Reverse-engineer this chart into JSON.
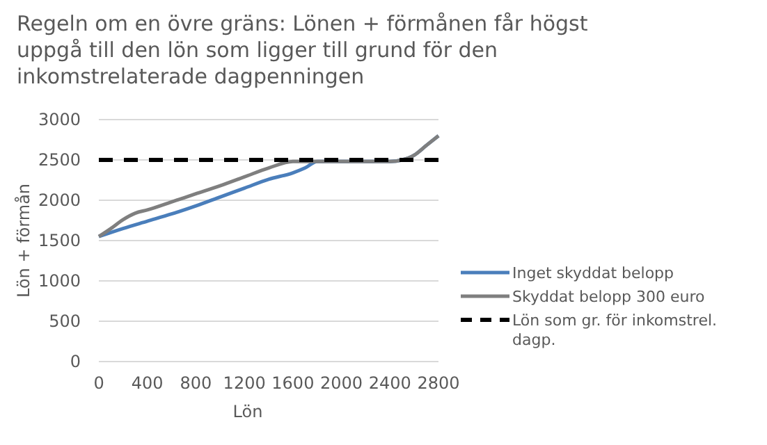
{
  "chart_data": {
    "type": "line",
    "title": "Regeln om en övre gräns: Lönen + förmånen får högst uppgå till den lön som ligger till grund för den inkomstrelaterade dagpenningen",
    "xlabel": "Lön",
    "ylabel": "Lön + förmån",
    "xlim": [
      0,
      2800
    ],
    "xticks": [
      0,
      400,
      800,
      1200,
      1600,
      2000,
      2400,
      2800
    ],
    "ylim": [
      0,
      3000
    ],
    "yticks": [
      0,
      500,
      1000,
      1500,
      2000,
      2500,
      3000
    ],
    "grid": "y",
    "legend": "right",
    "series": [
      {
        "name": "Inget skyddat belopp",
        "color": "#4a7ebb",
        "x": [
          0,
          200,
          400,
          600,
          800,
          1000,
          1200,
          1400,
          1600,
          1700,
          1800,
          2000,
          2200,
          2400,
          2500,
          2600,
          2700,
          2800
        ],
        "values": [
          1550,
          1650,
          1740,
          1830,
          1930,
          2040,
          2150,
          2260,
          2340,
          2400,
          2480,
          2480,
          2480,
          2480,
          2500,
          2560,
          2680,
          2800
        ]
      },
      {
        "name": "Skyddat belopp 300 euro",
        "color": "#7f7f7f",
        "x": [
          0,
          100,
          200,
          300,
          400,
          600,
          800,
          1000,
          1200,
          1400,
          1600,
          1800,
          2000,
          2200,
          2400,
          2500,
          2600,
          2700,
          2800
        ],
        "values": [
          1550,
          1650,
          1760,
          1840,
          1880,
          1980,
          2080,
          2180,
          2290,
          2400,
          2480,
          2480,
          2480,
          2480,
          2480,
          2500,
          2560,
          2680,
          2800
        ]
      },
      {
        "name": "Lön som gr. för inkomstrel. dagp.",
        "color": "#000000",
        "line_style": "dashed",
        "x": [
          0,
          2800
        ],
        "values": [
          2500,
          2500
        ]
      }
    ]
  }
}
